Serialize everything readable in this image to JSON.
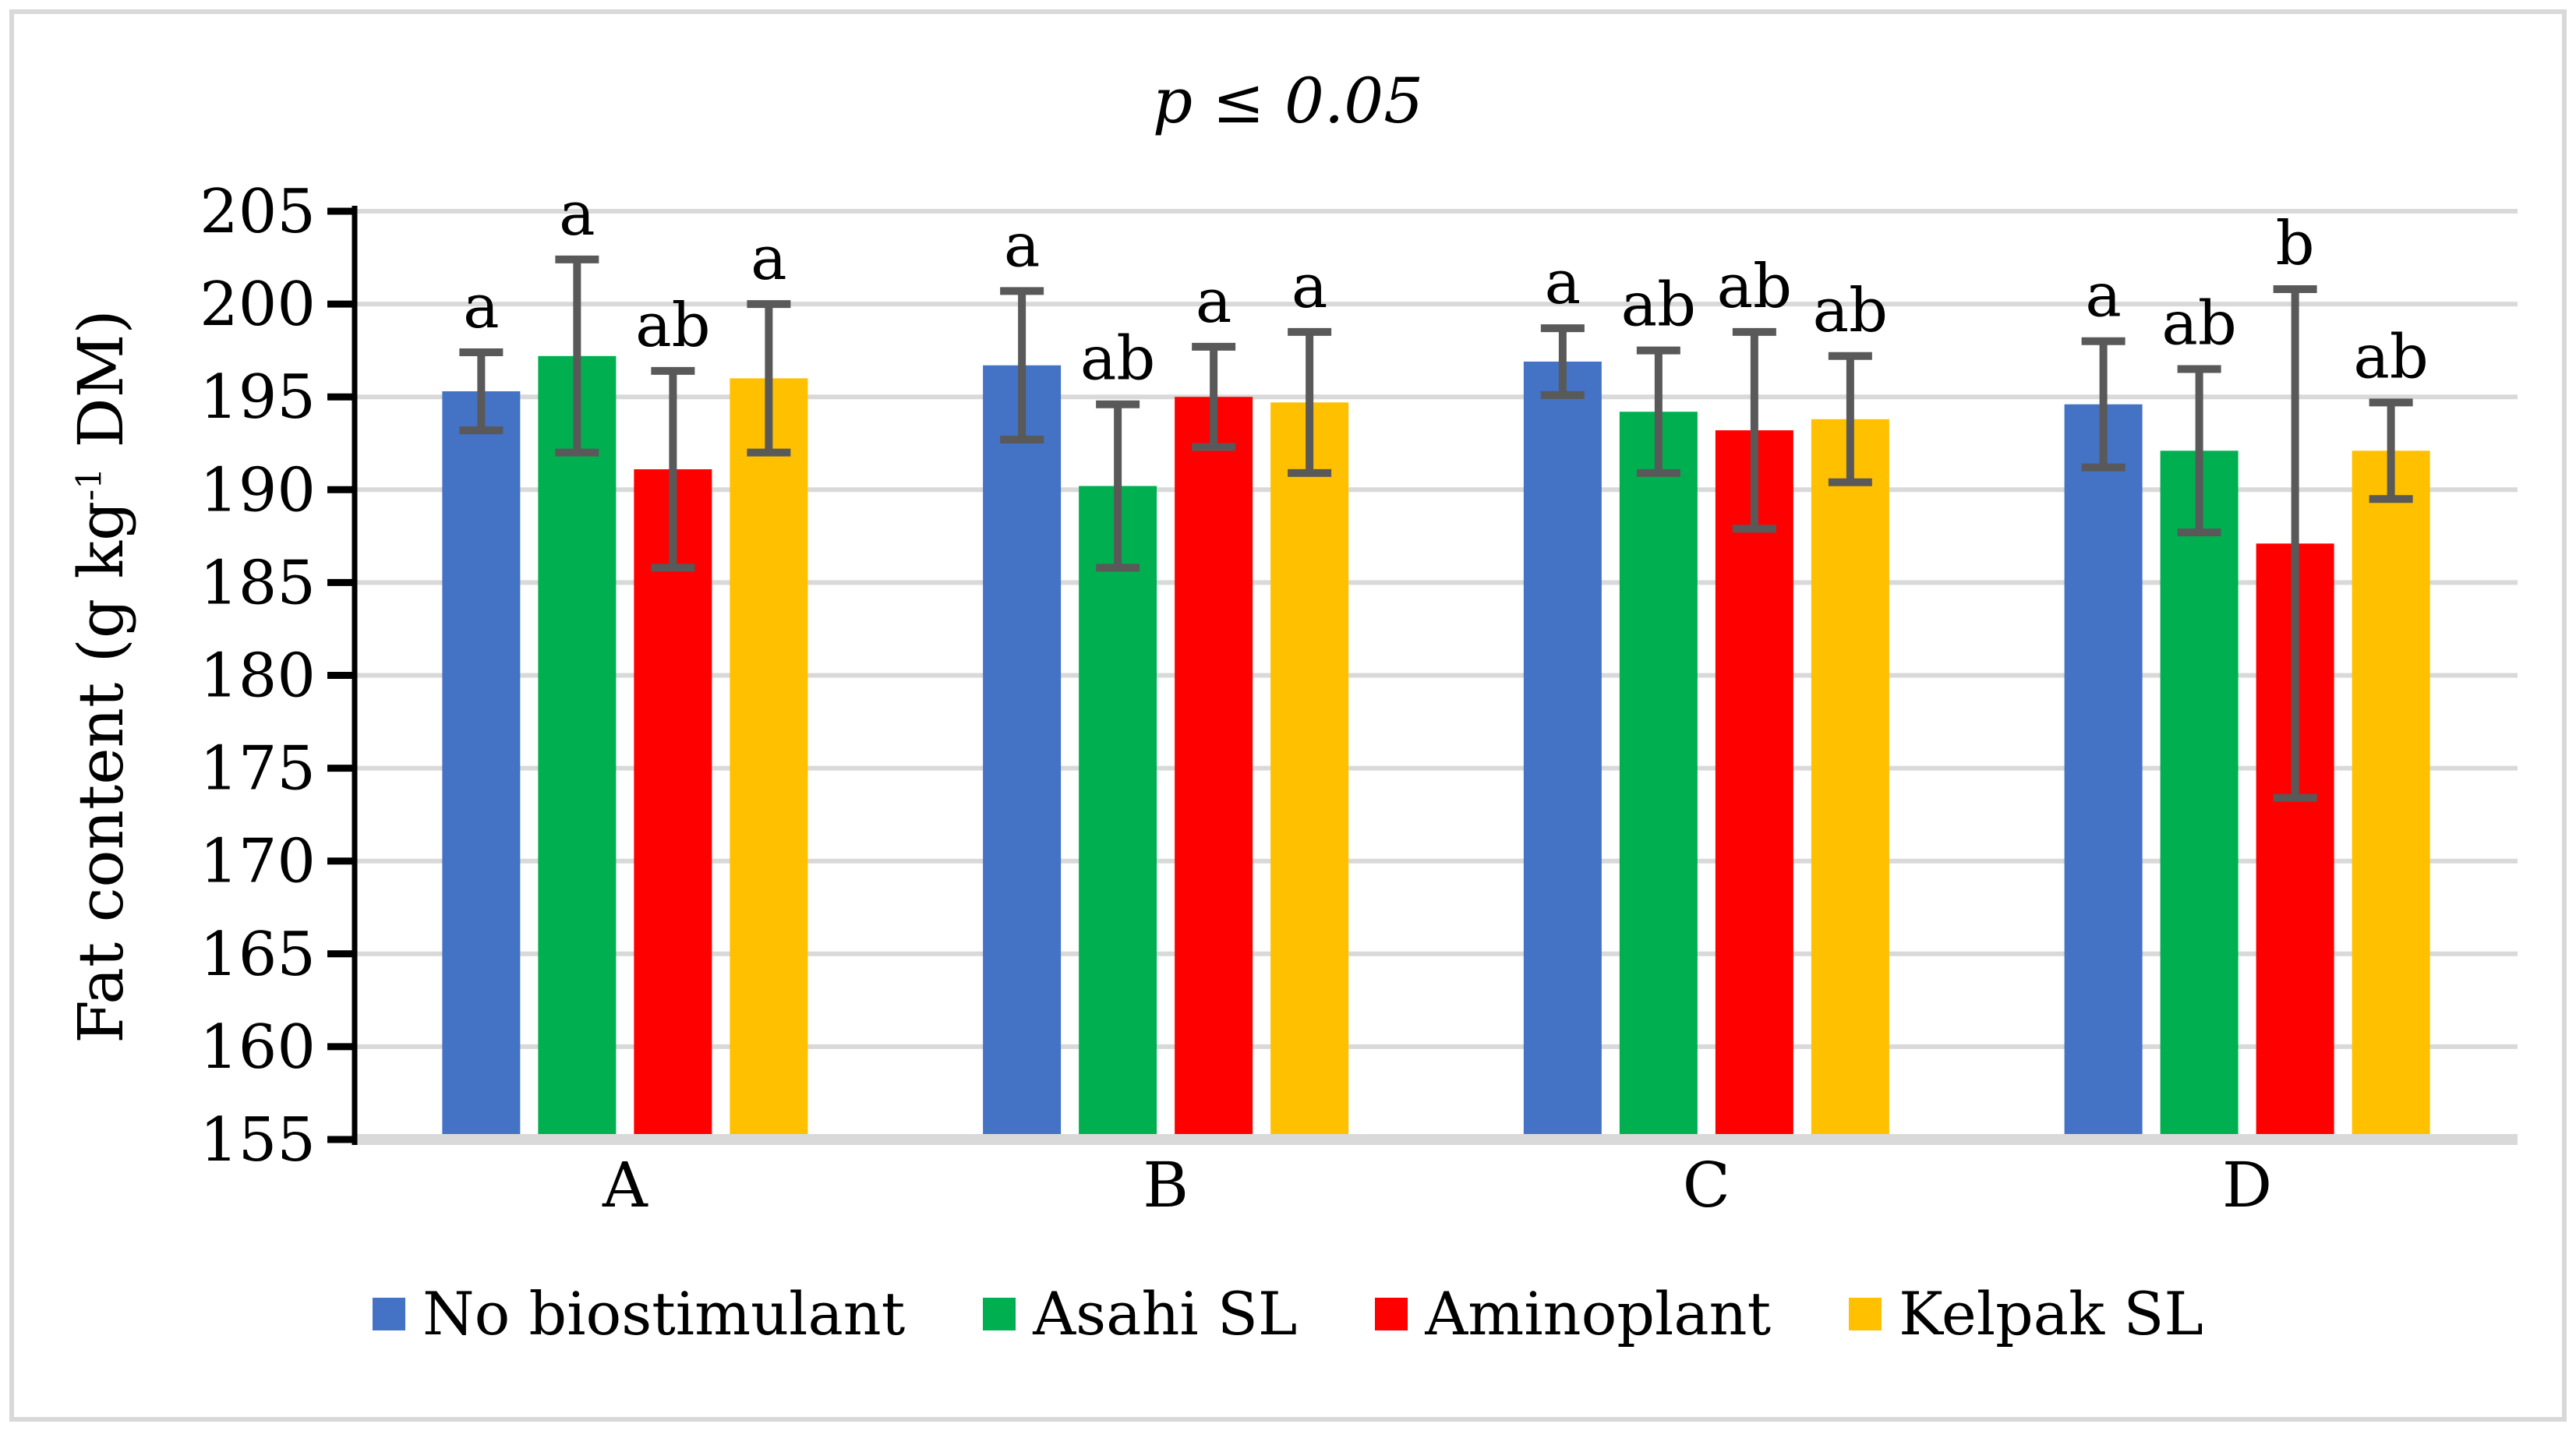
{
  "figure": {
    "title": "p ≤ 0.05",
    "ylabel": {
      "prefix": "Fat content (g kg",
      "superscript": "-1",
      "suffix": " DM)"
    }
  },
  "chart_data": {
    "type": "bar",
    "title": "p ≤ 0.05",
    "ylabel": "Fat content (g kg⁻¹ DM)",
    "categories": [
      "A",
      "B",
      "C",
      "D"
    ],
    "ylim": [
      155,
      205
    ],
    "ytick_step": 5,
    "grid": true,
    "legend_position": "bottom",
    "bar_baseline": 155,
    "series": [
      {
        "name": "No biostimulant",
        "color": "#4472C4",
        "values": [
          195.3,
          196.7,
          196.9,
          194.6
        ],
        "error": [
          2.1,
          4.0,
          1.8,
          3.4
        ],
        "letters": [
          "a",
          "a",
          "a",
          "a"
        ]
      },
      {
        "name": "Asahi SL",
        "color": "#00B050",
        "values": [
          197.2,
          190.2,
          194.2,
          192.1
        ],
        "error": [
          5.2,
          4.4,
          3.3,
          4.4
        ],
        "letters": [
          "a",
          "ab",
          "ab",
          "ab"
        ]
      },
      {
        "name": "Aminoplant",
        "color": "#FF0000",
        "values": [
          191.1,
          195.0,
          193.2,
          187.1
        ],
        "error": [
          5.3,
          2.7,
          5.3,
          13.7
        ],
        "letters": [
          "ab",
          "a",
          "ab",
          "b"
        ]
      },
      {
        "name": "Kelpak SL",
        "color": "#FFC000",
        "values": [
          196.0,
          194.7,
          193.8,
          192.1
        ],
        "error": [
          4.0,
          3.8,
          3.4,
          2.6
        ],
        "letters": [
          "a",
          "a",
          "ab",
          "ab"
        ]
      }
    ],
    "colors": {
      "error_bar": "#595959",
      "gridline": "#D9D9D9",
      "baseline": "#D9D9D9",
      "axis": "#000000",
      "frame_border": "#D9D9D9"
    }
  }
}
